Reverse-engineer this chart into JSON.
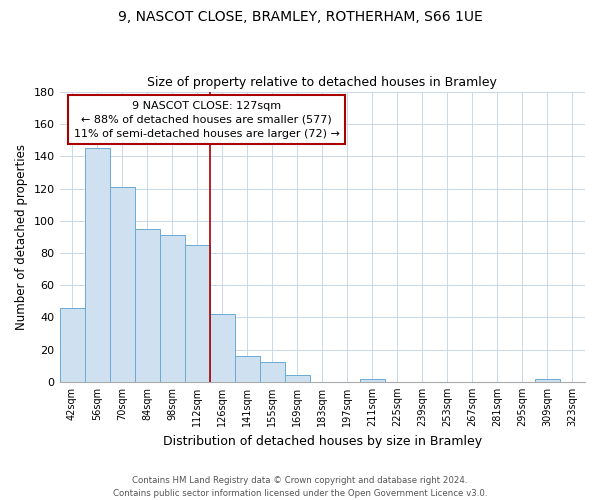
{
  "title": "9, NASCOT CLOSE, BRAMLEY, ROTHERHAM, S66 1UE",
  "subtitle": "Size of property relative to detached houses in Bramley",
  "xlabel": "Distribution of detached houses by size in Bramley",
  "ylabel": "Number of detached properties",
  "bar_labels": [
    "42sqm",
    "56sqm",
    "70sqm",
    "84sqm",
    "98sqm",
    "112sqm",
    "126sqm",
    "141sqm",
    "155sqm",
    "169sqm",
    "183sqm",
    "197sqm",
    "211sqm",
    "225sqm",
    "239sqm",
    "253sqm",
    "267sqm",
    "281sqm",
    "295sqm",
    "309sqm",
    "323sqm"
  ],
  "bar_values": [
    46,
    145,
    121,
    95,
    91,
    85,
    42,
    16,
    12,
    4,
    0,
    0,
    2,
    0,
    0,
    0,
    0,
    0,
    0,
    2,
    0
  ],
  "bar_color": "#cfe0f0",
  "bar_edgecolor": "#6aaad4",
  "vline_x_index": 6,
  "vline_color": "#aa0000",
  "ylim": [
    0,
    180
  ],
  "yticks": [
    0,
    20,
    40,
    60,
    80,
    100,
    120,
    140,
    160,
    180
  ],
  "annotation_line1": "9 NASCOT CLOSE: 127sqm",
  "annotation_line2": "← 88% of detached houses are smaller (577)",
  "annotation_line3": "11% of semi-detached houses are larger (72) →",
  "footer_line1": "Contains HM Land Registry data © Crown copyright and database right 2024.",
  "footer_line2": "Contains public sector information licensed under the Open Government Licence v3.0.",
  "background_color": "#ffffff",
  "grid_color": "#c8d8e8"
}
